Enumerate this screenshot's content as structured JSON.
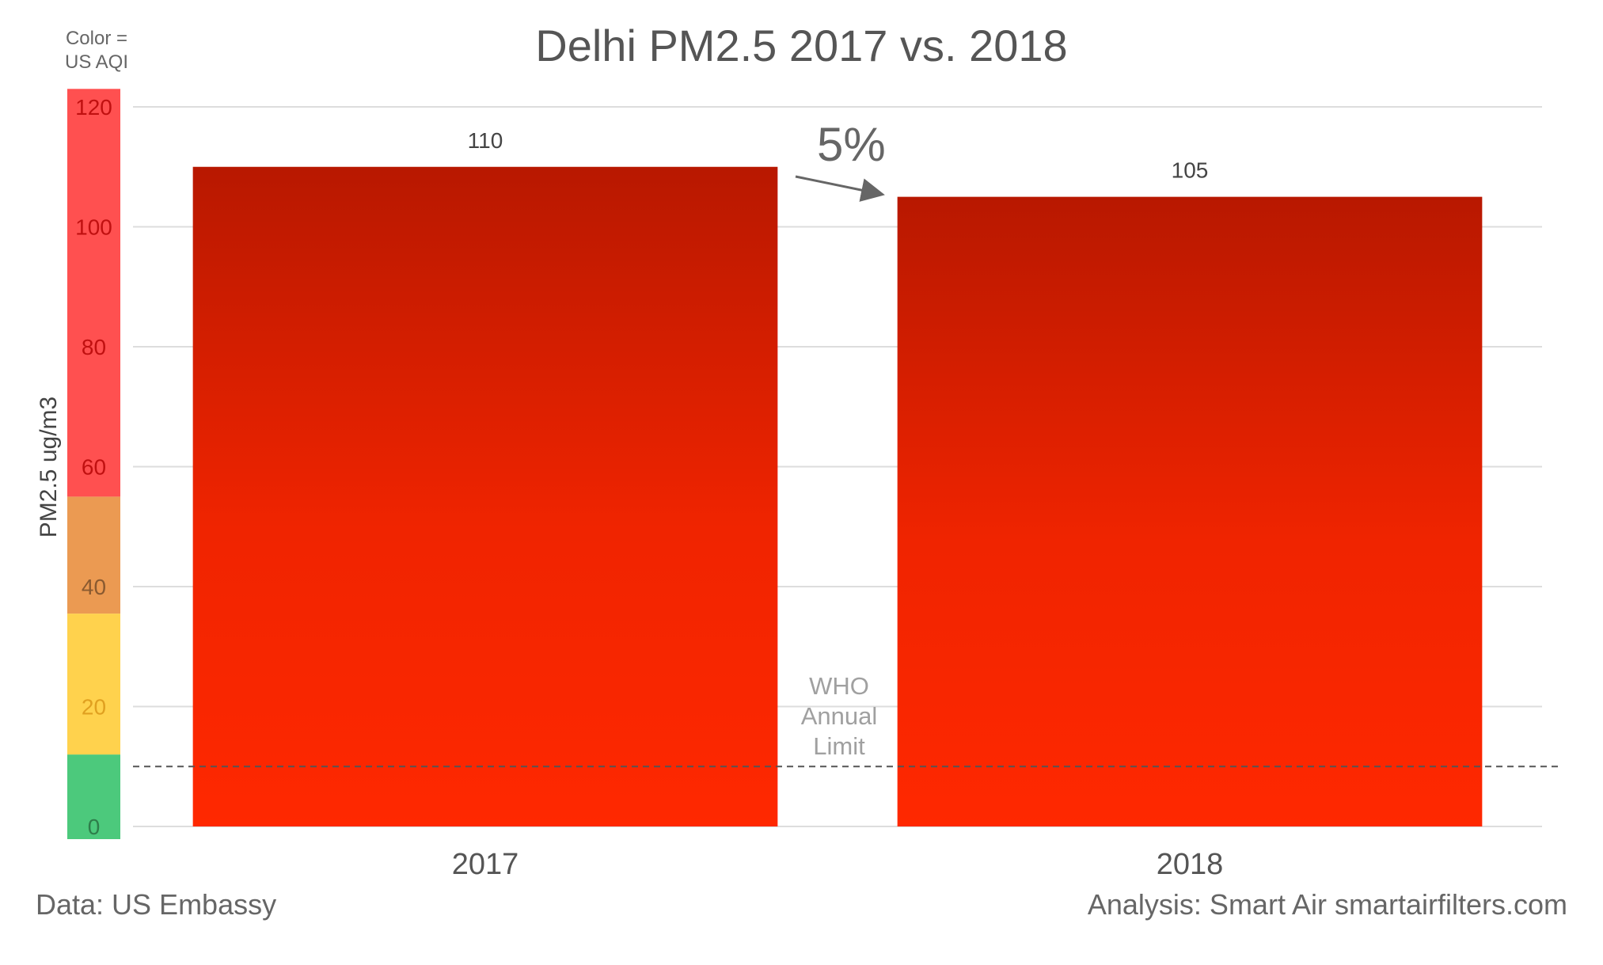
{
  "chart_data": {
    "type": "bar",
    "title": "Delhi PM2.5 2017 vs. 2018",
    "ylabel": "PM2.5 ug/m3",
    "xlabel": "",
    "categories": [
      "2017",
      "2018"
    ],
    "values": [
      110,
      105
    ],
    "data_labels": [
      "110",
      "105"
    ],
    "ylim": [
      0,
      123
    ],
    "yticks": [
      0,
      20,
      40,
      60,
      80,
      100,
      120
    ],
    "grid": true,
    "bar_color_top": "#b81800",
    "bar_color_bottom": "#ff2800",
    "color_scale_caption": [
      "Color =",
      "US AQI"
    ],
    "color_scale_bands": [
      {
        "from": 0,
        "to": 12,
        "color": "#4cc97c",
        "tick_color": "#2e7d4a"
      },
      {
        "from": 12,
        "to": 35.5,
        "color": "#ffd24d",
        "tick_color": "#e0a020"
      },
      {
        "from": 35.5,
        "to": 55,
        "color": "#eb9a52",
        "tick_color": "#8a5a30"
      },
      {
        "from": 55,
        "to": 125,
        "color": "#ff5050",
        "tick_color": "#c01010"
      }
    ],
    "reference_line": {
      "value": 10,
      "label_lines": [
        "WHO",
        "Annual",
        "Limit"
      ],
      "style": "dashed"
    },
    "annotation": {
      "text": "5%",
      "description": "decrease arrow from 2017 bar to 2018 bar"
    }
  },
  "footer": {
    "source_left": "Data: US Embassy",
    "source_right": "Analysis: Smart Air smartairfilters.com"
  }
}
